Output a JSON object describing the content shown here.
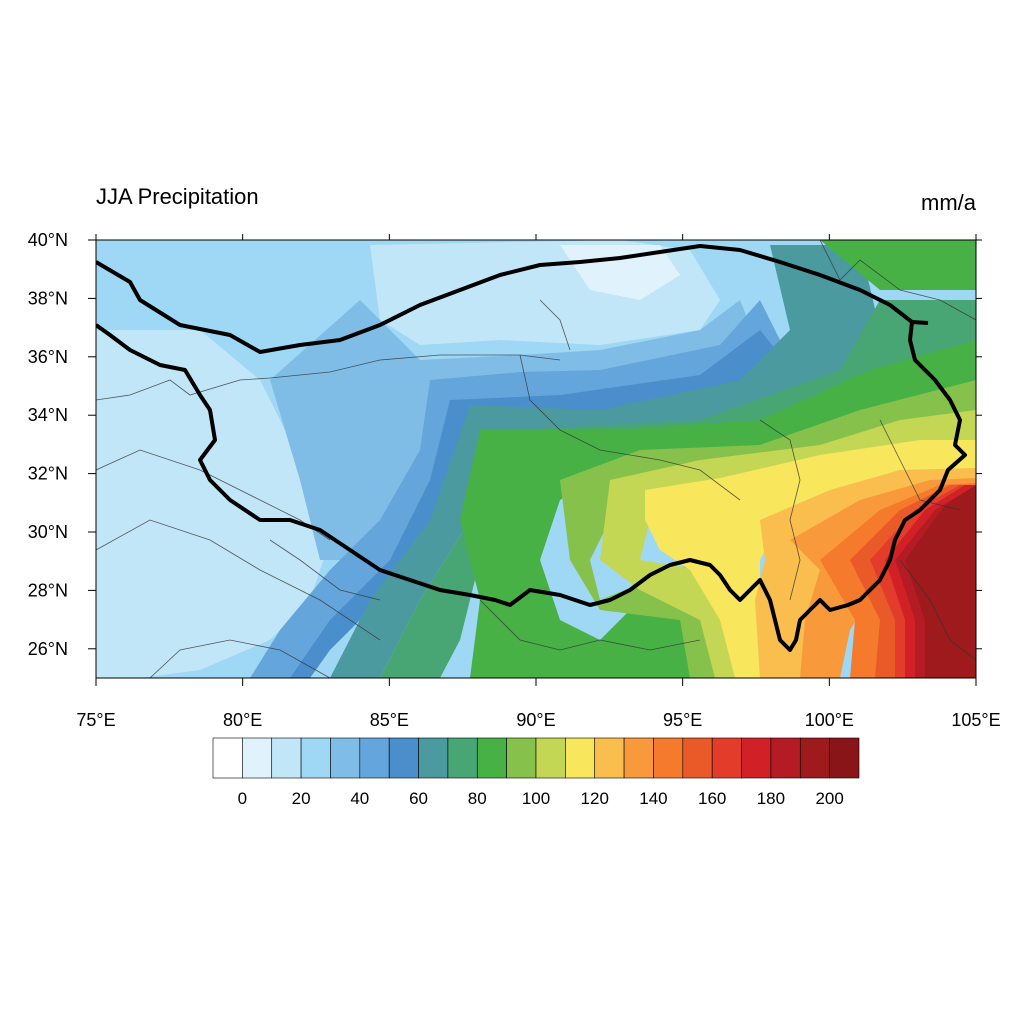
{
  "title": "JJA Precipitation",
  "units": "mm/a",
  "map": {
    "lon_range": [
      75,
      105
    ],
    "lat_range": [
      25,
      40
    ],
    "lon_ticks": [
      "75°E",
      "80°E",
      "85°E",
      "90°E",
      "95°E",
      "100°E",
      "105°E"
    ],
    "lon_tick_values": [
      75,
      80,
      85,
      90,
      95,
      100,
      105
    ],
    "lat_ticks": [
      "26°N",
      "28°N",
      "30°N",
      "32°N",
      "34°N",
      "36°N",
      "38°N",
      "40°N"
    ],
    "lat_tick_values": [
      26,
      28,
      30,
      32,
      34,
      36,
      38,
      40
    ],
    "background_color": "#9fd8f4"
  },
  "colorbar": {
    "colors": [
      "#ffffff",
      "#e0f3fc",
      "#c1e6f8",
      "#9fd8f4",
      "#80bde6",
      "#64a6dc",
      "#4a8ecb",
      "#4b9a9f",
      "#48a574",
      "#47b146",
      "#86c24b",
      "#c3d755",
      "#f8e65c",
      "#f9be4e",
      "#f89a3b",
      "#f57a2b",
      "#ea5a28",
      "#e33c2b",
      "#d12127",
      "#b51b24",
      "#9e1a1d",
      "#8a1518"
    ],
    "labels": [
      "0",
      "20",
      "40",
      "60",
      "80",
      "100",
      "120",
      "140",
      "160",
      "180",
      "200"
    ],
    "label_values": [
      0,
      20,
      40,
      60,
      80,
      100,
      120,
      140,
      160,
      180,
      200
    ]
  }
}
